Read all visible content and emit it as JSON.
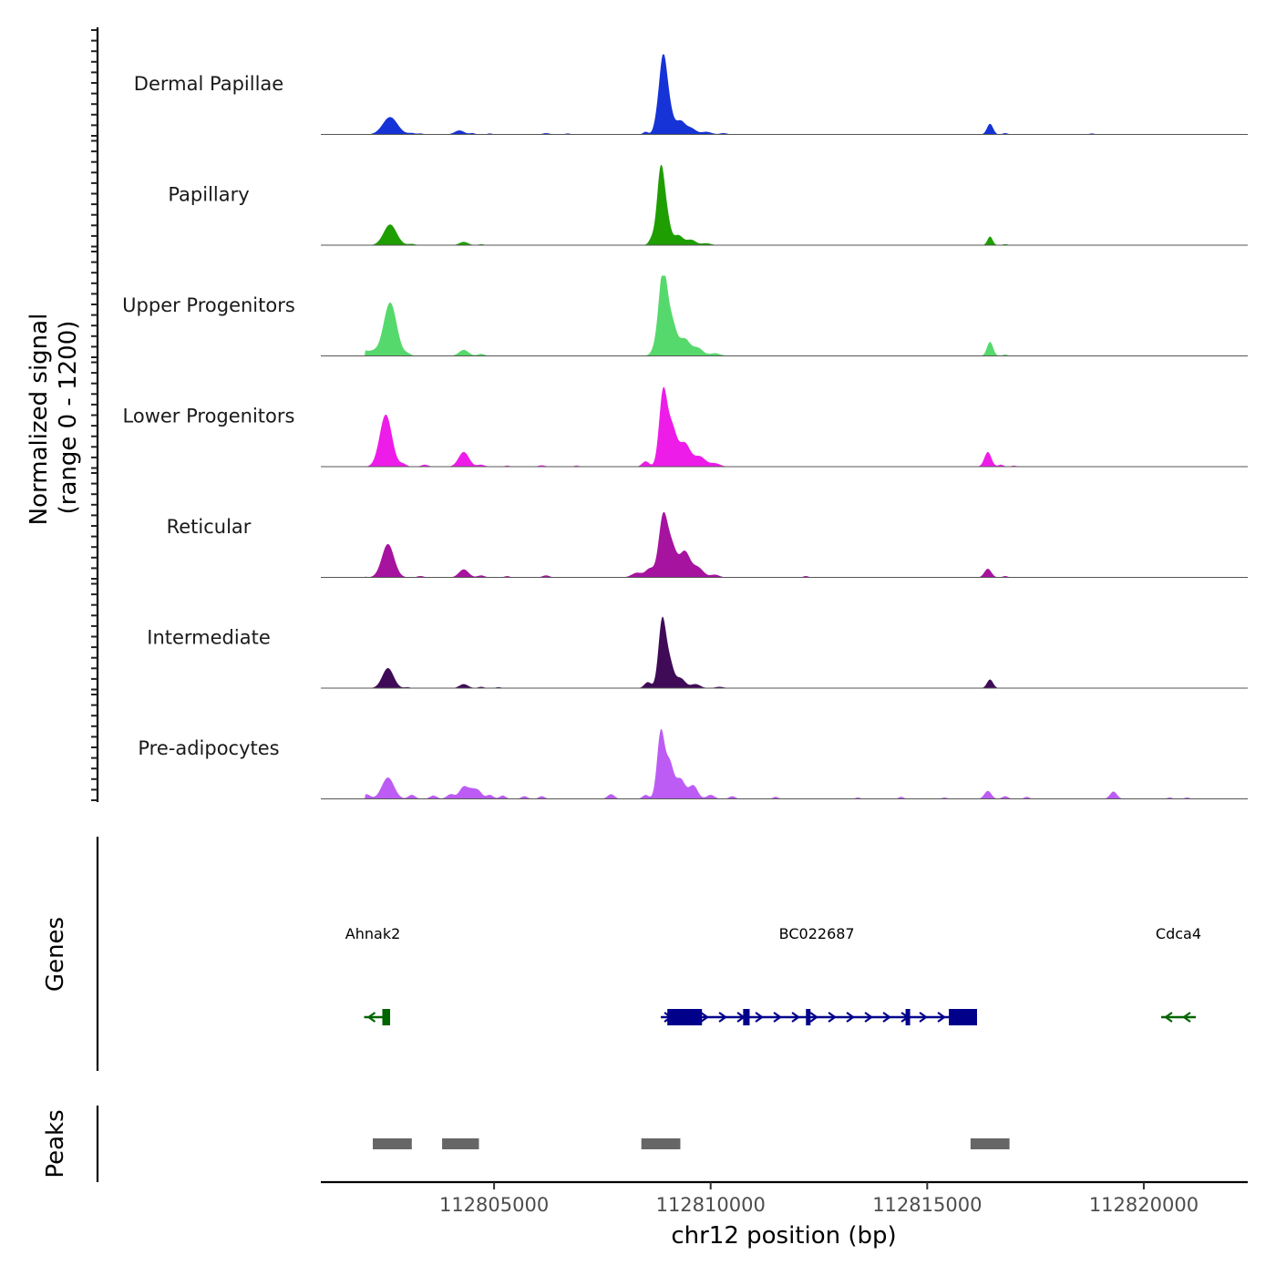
{
  "chart_data": {
    "type": "area",
    "title": "",
    "chromosome": "chr12",
    "xlabel": "chr12 position (bp)",
    "ylabel": "Normalized signal",
    "ylabel_range": "(range 0 - 1200)",
    "xlim": [
      112801000,
      112822400
    ],
    "ylim": [
      0,
      1200
    ],
    "x_ticks": [
      112805000,
      112810000,
      112815000,
      112820000
    ],
    "x_tick_labels": [
      "112805000",
      "112810000",
      "112815000",
      "112820000"
    ],
    "tracks": [
      {
        "name": "Dermal Papillae",
        "color": "#1533D6",
        "peaks": [
          [
            112801250,
            30,
            60
          ],
          [
            112801450,
            40,
            70
          ],
          [
            112801650,
            60,
            90
          ],
          [
            112802600,
            260,
            170
          ],
          [
            112803100,
            20,
            80
          ],
          [
            112803300,
            15,
            60
          ],
          [
            112804200,
            60,
            110
          ],
          [
            112804500,
            20,
            60
          ],
          [
            112804900,
            15,
            60
          ],
          [
            112806200,
            20,
            80
          ],
          [
            112806700,
            15,
            60
          ],
          [
            112808500,
            40,
            60
          ],
          [
            112808750,
            120,
            70
          ],
          [
            112808900,
            1120,
            90
          ],
          [
            112809050,
            320,
            90
          ],
          [
            112809300,
            200,
            110
          ],
          [
            112809550,
            90,
            110
          ],
          [
            112809900,
            40,
            120
          ],
          [
            112810300,
            20,
            80
          ],
          [
            112816450,
            160,
            70
          ],
          [
            112816800,
            20,
            60
          ],
          [
            112818800,
            15,
            60
          ]
        ]
      },
      {
        "name": "Papillary",
        "color": "#1E9E00",
        "peaks": [
          [
            112801450,
            40,
            80
          ],
          [
            112801800,
            50,
            80
          ],
          [
            112802600,
            310,
            150
          ],
          [
            112803100,
            20,
            80
          ],
          [
            112804300,
            50,
            100
          ],
          [
            112804700,
            15,
            60
          ],
          [
            112808650,
            100,
            70
          ],
          [
            112808850,
            1150,
            85
          ],
          [
            112809000,
            330,
            80
          ],
          [
            112809250,
            150,
            110
          ],
          [
            112809550,
            80,
            110
          ],
          [
            112809900,
            30,
            110
          ],
          [
            112816450,
            130,
            60
          ],
          [
            112816800,
            15,
            60
          ]
        ]
      },
      {
        "name": "Upper Progenitors",
        "color": "#56D96C",
        "peaks": [
          [
            112801500,
            80,
            120
          ],
          [
            112801900,
            110,
            130
          ],
          [
            112802600,
            800,
            150
          ],
          [
            112802200,
            60,
            110
          ],
          [
            112803000,
            30,
            80
          ],
          [
            112804300,
            90,
            110
          ],
          [
            112804700,
            30,
            80
          ],
          [
            112808750,
            120,
            100
          ],
          [
            112808900,
            1200,
            95
          ],
          [
            112809100,
            500,
            110
          ],
          [
            112809400,
            250,
            120
          ],
          [
            112809700,
            120,
            120
          ],
          [
            112810100,
            40,
            120
          ],
          [
            112816450,
            210,
            70
          ],
          [
            112816800,
            20,
            60
          ]
        ]
      },
      {
        "name": "Lower Progenitors",
        "color": "#EE1CE8",
        "peaks": [
          [
            112801200,
            30,
            80
          ],
          [
            112801650,
            80,
            120
          ],
          [
            112802500,
            780,
            140
          ],
          [
            112802900,
            40,
            80
          ],
          [
            112803400,
            30,
            80
          ],
          [
            112804300,
            220,
            120
          ],
          [
            112804700,
            30,
            80
          ],
          [
            112805300,
            15,
            60
          ],
          [
            112806100,
            20,
            80
          ],
          [
            112806900,
            15,
            60
          ],
          [
            112808500,
            80,
            80
          ],
          [
            112808900,
            1070,
            90
          ],
          [
            112809100,
            580,
            110
          ],
          [
            112809400,
            350,
            130
          ],
          [
            112809750,
            150,
            130
          ],
          [
            112810100,
            50,
            120
          ],
          [
            112816400,
            220,
            80
          ],
          [
            112816700,
            30,
            60
          ],
          [
            112817000,
            15,
            60
          ]
        ]
      },
      {
        "name": "Reticular",
        "color": "#A6139F",
        "peaks": [
          [
            112801450,
            80,
            100
          ],
          [
            112801800,
            100,
            110
          ],
          [
            112802550,
            500,
            140
          ],
          [
            112803300,
            20,
            80
          ],
          [
            112804300,
            120,
            110
          ],
          [
            112804700,
            30,
            80
          ],
          [
            112805300,
            20,
            60
          ],
          [
            112806200,
            30,
            80
          ],
          [
            112808300,
            70,
            120
          ],
          [
            112808600,
            130,
            100
          ],
          [
            112808900,
            880,
            100
          ],
          [
            112809100,
            450,
            110
          ],
          [
            112809400,
            380,
            120
          ],
          [
            112809700,
            150,
            130
          ],
          [
            112810100,
            40,
            100
          ],
          [
            112812200,
            20,
            60
          ],
          [
            112816400,
            130,
            80
          ],
          [
            112816800,
            20,
            60
          ]
        ]
      },
      {
        "name": "Intermediate",
        "color": "#3F0B57",
        "peaks": [
          [
            112801450,
            30,
            70
          ],
          [
            112801750,
            40,
            70
          ],
          [
            112802550,
            300,
            130
          ],
          [
            112803000,
            15,
            60
          ],
          [
            112804300,
            60,
            100
          ],
          [
            112804700,
            20,
            70
          ],
          [
            112805100,
            15,
            60
          ],
          [
            112808550,
            90,
            80
          ],
          [
            112808880,
            1000,
            85
          ],
          [
            112809050,
            380,
            90
          ],
          [
            112809300,
            150,
            110
          ],
          [
            112809650,
            60,
            110
          ],
          [
            112810200,
            20,
            100
          ],
          [
            112816450,
            130,
            70
          ]
        ]
      },
      {
        "name": "Pre-adipocytes",
        "color": "#BC5CF5",
        "peaks": [
          [
            112801250,
            60,
            80
          ],
          [
            112801450,
            50,
            70
          ],
          [
            112801700,
            80,
            90
          ],
          [
            112802050,
            70,
            90
          ],
          [
            112802550,
            320,
            140
          ],
          [
            112803100,
            60,
            80
          ],
          [
            112803600,
            50,
            80
          ],
          [
            112804000,
            70,
            90
          ],
          [
            112804300,
            180,
            100
          ],
          [
            112804500,
            120,
            90
          ],
          [
            112804650,
            100,
            80
          ],
          [
            112804900,
            60,
            80
          ],
          [
            112805200,
            50,
            70
          ],
          [
            112805700,
            40,
            70
          ],
          [
            112806100,
            40,
            70
          ],
          [
            112807700,
            70,
            80
          ],
          [
            112808500,
            60,
            70
          ],
          [
            112808850,
            1000,
            85
          ],
          [
            112809050,
            520,
            90
          ],
          [
            112809300,
            300,
            110
          ],
          [
            112809600,
            200,
            100
          ],
          [
            112810000,
            60,
            90
          ],
          [
            112810500,
            40,
            70
          ],
          [
            112811500,
            30,
            60
          ],
          [
            112813400,
            20,
            60
          ],
          [
            112814400,
            30,
            60
          ],
          [
            112815400,
            20,
            60
          ],
          [
            112816400,
            120,
            80
          ],
          [
            112816800,
            40,
            70
          ],
          [
            112817300,
            30,
            60
          ],
          [
            112819300,
            110,
            80
          ],
          [
            112820600,
            20,
            60
          ],
          [
            112821000,
            20,
            60
          ]
        ]
      }
    ],
    "genes_label": "Genes",
    "genes": [
      {
        "name": "Ahnak2",
        "label_x": 112802200,
        "start": 112802000,
        "end": 112802600,
        "strand": "-",
        "color": "#006400",
        "exons": [
          [
            112802420,
            112802600
          ]
        ]
      },
      {
        "name": "BC022687",
        "label_x": 112812450,
        "start": 112808850,
        "end": 112816150,
        "strand": "+",
        "color": "#00008B",
        "exons": [
          [
            112809000,
            112809800
          ],
          [
            112810750,
            112810900
          ],
          [
            112812200,
            112812300
          ],
          [
            112814500,
            112814600
          ],
          [
            112815500,
            112816150
          ]
        ]
      },
      {
        "name": "Cdca4",
        "label_x": 112820800,
        "start": 112820400,
        "end": 112821200,
        "strand": "-",
        "color": "#006400",
        "exons": []
      }
    ],
    "peaks_label": "Peaks",
    "peak_regions": [
      [
        112802200,
        112803100
      ],
      [
        112803800,
        112804650
      ],
      [
        112808400,
        112809300
      ],
      [
        112816000,
        112816900
      ]
    ],
    "peak_color": "#666666"
  }
}
